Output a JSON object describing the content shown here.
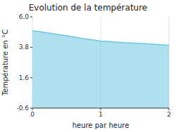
{
  "chart_data": {
    "type": "area",
    "title": "Evolution de la température",
    "x_label": "heure par heure",
    "y_label": "Température en °C",
    "x": [
      0,
      0.1,
      0.2,
      0.3,
      0.4,
      0.5,
      0.6,
      0.7,
      0.8,
      0.9,
      1.0,
      1.1,
      1.2,
      1.3,
      1.4,
      1.5,
      1.6,
      1.7,
      1.8,
      1.9,
      2.0
    ],
    "values": [
      5.0,
      4.93,
      4.86,
      4.78,
      4.71,
      4.63,
      4.55,
      4.47,
      4.39,
      4.32,
      4.25,
      4.22,
      4.18,
      4.15,
      4.12,
      4.1,
      4.07,
      4.04,
      4.01,
      3.98,
      3.95
    ],
    "color": "#6ec6e0",
    "xlim": [
      0,
      2
    ],
    "ylim": [
      -0.6,
      6.0
    ],
    "xticks": [
      0,
      1,
      2
    ],
    "yticks": [
      -0.6,
      1.6,
      3.8,
      {
        "value": 6.0,
        "label": "6.0"
      }
    ],
    "grid": "x"
  }
}
